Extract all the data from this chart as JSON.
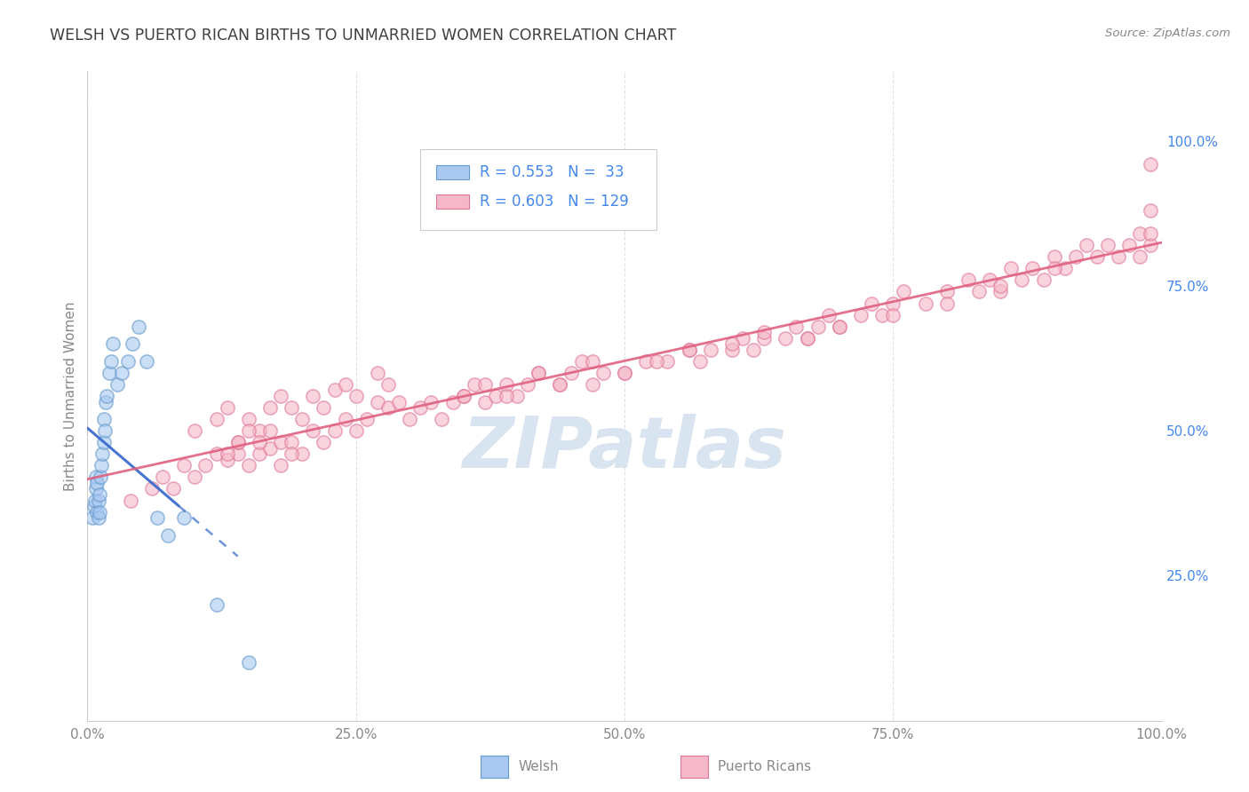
{
  "title": "WELSH VS PUERTO RICAN BIRTHS TO UNMARRIED WOMEN CORRELATION CHART",
  "source": "Source: ZipAtlas.com",
  "ylabel": "Births to Unmarried Women",
  "xlim": [
    0.0,
    1.0
  ],
  "ylim": [
    0.0,
    1.12
  ],
  "xtick_labels": [
    "0.0%",
    "25.0%",
    "50.0%",
    "75.0%",
    "100.0%"
  ],
  "xtick_values": [
    0.0,
    0.25,
    0.5,
    0.75,
    1.0
  ],
  "ytick_labels": [
    "25.0%",
    "50.0%",
    "75.0%",
    "100.0%"
  ],
  "ytick_values": [
    0.25,
    0.5,
    0.75,
    1.0
  ],
  "welsh_R": 0.553,
  "welsh_N": 33,
  "pr_R": 0.603,
  "pr_N": 129,
  "welsh_color": "#a8c8f0",
  "welsh_edge_color": "#6699cc",
  "pr_color": "#f5b8c8",
  "pr_edge_color": "#e07898",
  "welsh_line_color": "#3366cc",
  "pr_line_color": "#e06080",
  "watermark_color": "#d8e4f0",
  "background_color": "#ffffff",
  "grid_color": "#e0e0e0",
  "title_color": "#404040",
  "legend_text_color": "#4488ee",
  "welsh_x": [
    0.005,
    0.006,
    0.007,
    0.008,
    0.008,
    0.009,
    0.009,
    0.01,
    0.01,
    0.011,
    0.011,
    0.012,
    0.013,
    0.014,
    0.015,
    0.015,
    0.016,
    0.017,
    0.018,
    0.02,
    0.022,
    0.024,
    0.028,
    0.032,
    0.038,
    0.042,
    0.048,
    0.055,
    0.065,
    0.075,
    0.09,
    0.12,
    0.15
  ],
  "welsh_y": [
    0.35,
    0.37,
    0.38,
    0.4,
    0.42,
    0.36,
    0.41,
    0.35,
    0.38,
    0.36,
    0.39,
    0.42,
    0.44,
    0.46,
    0.48,
    0.52,
    0.5,
    0.55,
    0.56,
    0.6,
    0.62,
    0.65,
    0.58,
    0.6,
    0.62,
    0.65,
    0.68,
    0.62,
    0.35,
    0.32,
    0.35,
    0.2,
    0.1
  ],
  "pr_x": [
    0.04,
    0.06,
    0.07,
    0.08,
    0.09,
    0.1,
    0.1,
    0.11,
    0.12,
    0.12,
    0.13,
    0.13,
    0.14,
    0.14,
    0.15,
    0.15,
    0.16,
    0.16,
    0.17,
    0.17,
    0.18,
    0.18,
    0.19,
    0.19,
    0.2,
    0.2,
    0.21,
    0.21,
    0.22,
    0.22,
    0.23,
    0.23,
    0.24,
    0.24,
    0.25,
    0.25,
    0.26,
    0.27,
    0.27,
    0.28,
    0.28,
    0.29,
    0.3,
    0.31,
    0.32,
    0.33,
    0.34,
    0.35,
    0.36,
    0.37,
    0.38,
    0.39,
    0.4,
    0.41,
    0.42,
    0.44,
    0.45,
    0.46,
    0.47,
    0.48,
    0.5,
    0.52,
    0.54,
    0.56,
    0.57,
    0.58,
    0.6,
    0.61,
    0.62,
    0.63,
    0.65,
    0.66,
    0.67,
    0.68,
    0.69,
    0.7,
    0.72,
    0.73,
    0.74,
    0.75,
    0.76,
    0.78,
    0.8,
    0.82,
    0.83,
    0.84,
    0.85,
    0.86,
    0.87,
    0.88,
    0.89,
    0.9,
    0.91,
    0.92,
    0.93,
    0.94,
    0.95,
    0.96,
    0.97,
    0.98,
    0.98,
    0.99,
    0.99,
    0.99,
    0.99,
    0.13,
    0.14,
    0.15,
    0.16,
    0.17,
    0.18,
    0.19,
    0.35,
    0.37,
    0.39,
    0.42,
    0.44,
    0.47,
    0.5,
    0.53,
    0.56,
    0.6,
    0.63,
    0.67,
    0.7,
    0.75,
    0.8,
    0.85,
    0.9
  ],
  "pr_y": [
    0.38,
    0.4,
    0.42,
    0.4,
    0.44,
    0.42,
    0.5,
    0.44,
    0.46,
    0.52,
    0.45,
    0.54,
    0.46,
    0.48,
    0.44,
    0.52,
    0.46,
    0.5,
    0.47,
    0.54,
    0.48,
    0.56,
    0.48,
    0.54,
    0.46,
    0.52,
    0.5,
    0.56,
    0.48,
    0.54,
    0.5,
    0.57,
    0.52,
    0.58,
    0.5,
    0.56,
    0.52,
    0.55,
    0.6,
    0.54,
    0.58,
    0.55,
    0.52,
    0.54,
    0.55,
    0.52,
    0.55,
    0.56,
    0.58,
    0.55,
    0.56,
    0.58,
    0.56,
    0.58,
    0.6,
    0.58,
    0.6,
    0.62,
    0.58,
    0.6,
    0.6,
    0.62,
    0.62,
    0.64,
    0.62,
    0.64,
    0.64,
    0.66,
    0.64,
    0.66,
    0.66,
    0.68,
    0.66,
    0.68,
    0.7,
    0.68,
    0.7,
    0.72,
    0.7,
    0.72,
    0.74,
    0.72,
    0.74,
    0.76,
    0.74,
    0.76,
    0.74,
    0.78,
    0.76,
    0.78,
    0.76,
    0.8,
    0.78,
    0.8,
    0.82,
    0.8,
    0.82,
    0.8,
    0.82,
    0.84,
    0.8,
    0.82,
    0.84,
    0.88,
    0.96,
    0.46,
    0.48,
    0.5,
    0.48,
    0.5,
    0.44,
    0.46,
    0.56,
    0.58,
    0.56,
    0.6,
    0.58,
    0.62,
    0.6,
    0.62,
    0.64,
    0.65,
    0.67,
    0.66,
    0.68,
    0.7,
    0.72,
    0.75,
    0.78
  ],
  "dot_size_welsh": 120,
  "dot_size_pr": 120,
  "dot_alpha": 0.6
}
